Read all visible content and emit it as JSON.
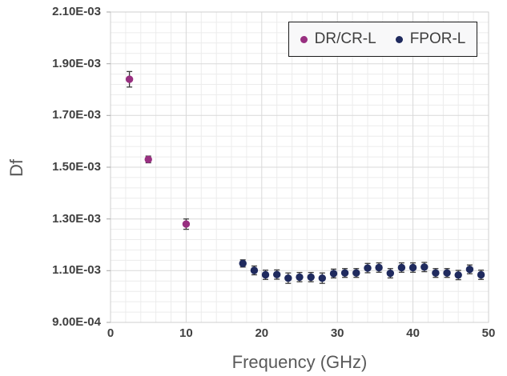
{
  "chart_data": {
    "type": "scatter",
    "title": "",
    "xlabel": "Frequency (GHz)",
    "ylabel": "Df",
    "xlim": [
      0,
      50
    ],
    "ylim": [
      0.0009,
      0.0021
    ],
    "x_major_step": 10,
    "x_minor_step": 2,
    "y_major_step": 0.0002,
    "y_minor_step": 4e-05,
    "x_tick_labels": [
      "0",
      "10",
      "20",
      "30",
      "40",
      "50"
    ],
    "y_tick_labels": [
      "2.10E-03",
      "1.90E-03",
      "1.70E-03",
      "1.50E-03",
      "1.30E-03",
      "1.10E-03",
      "9.00E-04"
    ],
    "grid": true,
    "legend_position": "top-right-inside",
    "error_bar_color": "#3a3a3a",
    "series": [
      {
        "name": "DR/CR-L",
        "color": "#982f80",
        "x": [
          2.5,
          5,
          10
        ],
        "y": [
          0.00184,
          0.00153,
          0.00128
        ],
        "yerr": [
          3e-05,
          1.3e-05,
          2e-05
        ]
      },
      {
        "name": "FPOR-L",
        "color": "#1f2a5e",
        "x": [
          17.5,
          19,
          20.5,
          22,
          23.5,
          25,
          26.5,
          28,
          29.5,
          31,
          32.5,
          34,
          35.5,
          37,
          38.5,
          40,
          41.5,
          43,
          44.5,
          46,
          47.5,
          49
        ],
        "y": [
          0.001128,
          0.001101,
          0.001084,
          0.001085,
          0.001071,
          0.001075,
          0.001075,
          0.001071,
          0.001089,
          0.001091,
          0.001091,
          0.00111,
          0.001112,
          0.00109,
          0.001112,
          0.001112,
          0.001114,
          0.001091,
          0.001091,
          0.001083,
          0.001105,
          0.001084
        ],
        "yerr": [
          1.4e-05,
          1.7e-05,
          1.8e-05,
          1.8e-05,
          2e-05,
          1.8e-05,
          1.8e-05,
          2e-05,
          1.7e-05,
          1.7e-05,
          1.7e-05,
          1.8e-05,
          1.8e-05,
          1.8e-05,
          1.8e-05,
          1.8e-05,
          1.8e-05,
          1.7e-05,
          1.7e-05,
          1.8e-05,
          1.7e-05,
          1.8e-05
        ]
      }
    ],
    "grid_colors": {
      "minor": "#ececec",
      "major": "#d9d9d9",
      "border": "#cfcfcf",
      "tick": "#a6a6a6"
    }
  }
}
